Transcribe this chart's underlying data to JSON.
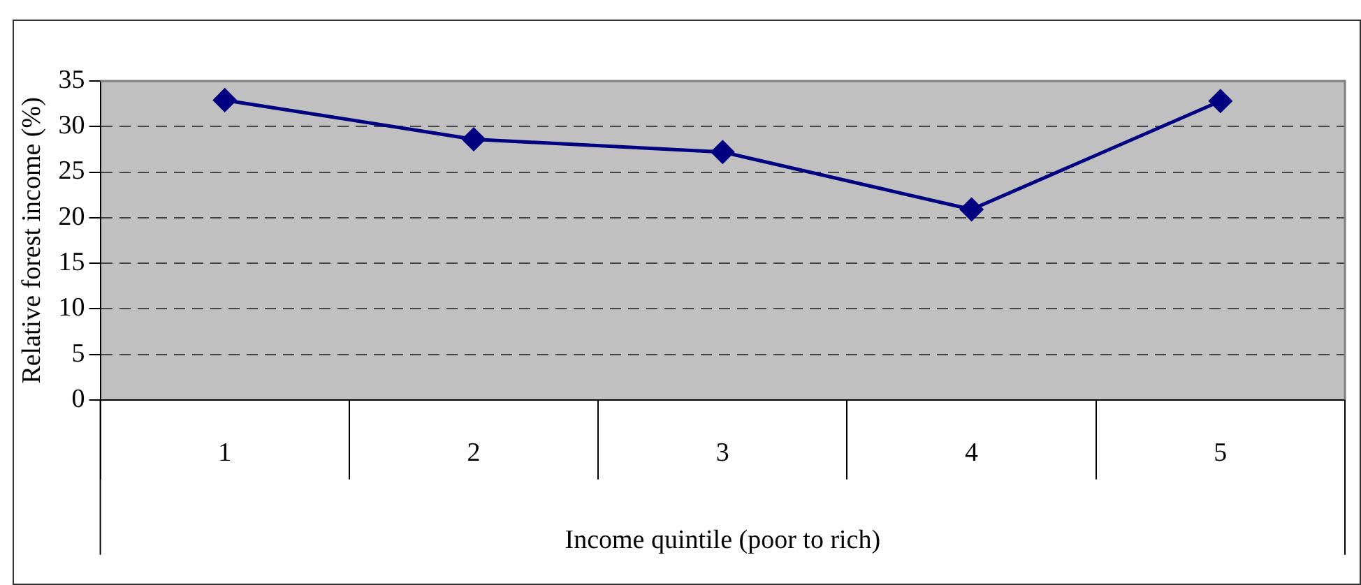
{
  "chart_data": {
    "type": "line",
    "xlabel": "Income quintile (poor to rich)",
    "ylabel": "Relative forest income (%)",
    "categories": [
      "1",
      "2",
      "3",
      "4",
      "5"
    ],
    "series": [
      {
        "color": "#000080",
        "values": [
          32.9,
          28.6,
          27.2,
          20.9,
          32.8
        ]
      }
    ],
    "ylim": [
      0,
      35
    ],
    "yticks": [
      0,
      5,
      10,
      15,
      20,
      25,
      30,
      35
    ],
    "grid": "y",
    "marker": "diamond",
    "line_style": "solid"
  }
}
